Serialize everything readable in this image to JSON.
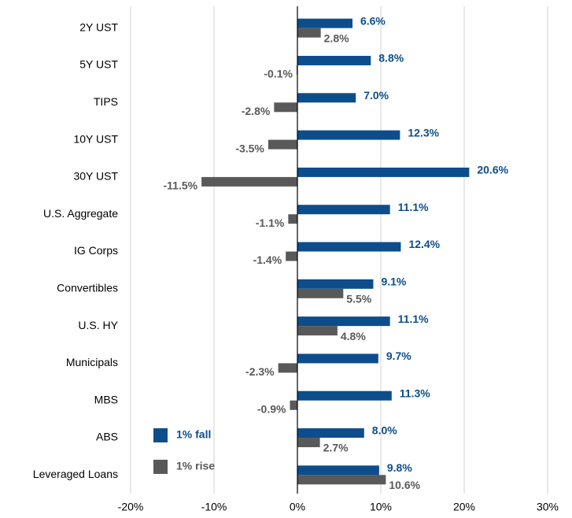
{
  "chart_data": {
    "type": "bar",
    "orientation": "horizontal",
    "categories": [
      "2Y UST",
      "5Y UST",
      "TIPS",
      "10Y UST",
      "30Y UST",
      "U.S. Aggregate",
      "IG Corps",
      "Convertibles",
      "U.S. HY",
      "Municipals",
      "MBS",
      "ABS",
      "Leveraged Loans"
    ],
    "series": [
      {
        "name": "1% fall",
        "color": "#0d4d8c",
        "values": [
          6.6,
          8.8,
          7.0,
          12.3,
          20.6,
          11.1,
          12.4,
          9.1,
          11.1,
          9.7,
          11.3,
          8.0,
          9.8
        ],
        "value_labels": [
          "6.6%",
          "8.8%",
          "7.0%",
          "12.3%",
          "20.6%",
          "11.1%",
          "12.4%",
          "9.1%",
          "11.1%",
          "9.7%",
          "11.3%",
          "8.0%",
          "9.8%"
        ]
      },
      {
        "name": "1% rise",
        "color": "#595959",
        "values": [
          2.8,
          -0.1,
          -2.8,
          -3.5,
          -11.5,
          -1.1,
          -1.4,
          5.5,
          4.8,
          -2.3,
          -0.9,
          2.7,
          10.6
        ],
        "value_labels": [
          "2.8%",
          "-0.1%",
          "-2.8%",
          "-3.5%",
          "-11.5%",
          "-1.1%",
          "-1.4%",
          "5.5%",
          "4.8%",
          "-2.3%",
          "-0.9%",
          "2.7%",
          "10.6%"
        ]
      }
    ],
    "xlim": [
      -20,
      30
    ],
    "xticks": [
      {
        "value": -20,
        "label": "-20%"
      },
      {
        "value": -10,
        "label": "-10%"
      },
      {
        "value": 0,
        "label": "0%"
      },
      {
        "value": 10,
        "label": "10%"
      },
      {
        "value": 20,
        "label": "20%"
      },
      {
        "value": 30,
        "label": "30%"
      }
    ],
    "grid": true,
    "legend": "lower left"
  }
}
